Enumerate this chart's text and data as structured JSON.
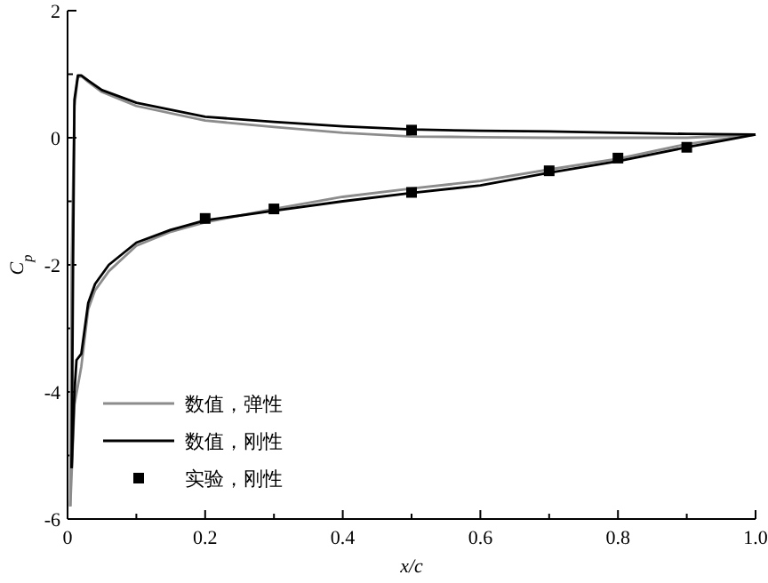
{
  "chart_data": {
    "type": "line",
    "xlabel": "x/c",
    "ylabel": "C$_{p}$",
    "xlim": [
      0,
      1
    ],
    "ylim": [
      -6,
      2
    ],
    "xticks": [
      0,
      {
        "value": 0.1,
        "label": null
      },
      0.2,
      {
        "value": 0.3,
        "label": null
      },
      0.4,
      {
        "value": 0.5,
        "label": null
      },
      0.6,
      {
        "value": 0.7,
        "label": null
      },
      0.8,
      {
        "value": 0.9,
        "label": null
      },
      {
        "value": 1,
        "label": "1.0"
      }
    ],
    "yticks": [
      -6,
      {
        "value": -5,
        "label": null
      },
      -4,
      {
        "value": -3,
        "label": null
      },
      -2,
      {
        "value": -1,
        "label": null
      },
      0,
      {
        "value": 1,
        "label": null
      },
      2
    ],
    "grid": false,
    "legend": "bottom left",
    "marker": "none",
    "line_style": "solid",
    "series": [
      {
        "name": "数值，弹性",
        "color": "#8c8c8c",
        "x": [
          0.004,
          0.01,
          0.02,
          0.03,
          0.04,
          0.06,
          0.1,
          0.15,
          0.2,
          0.3,
          0.4,
          0.5,
          0.6,
          0.7,
          0.8,
          0.9,
          1.0
        ],
        "values": [
          -5.8,
          -4.2,
          -3.6,
          -2.7,
          -2.4,
          -2.1,
          -1.7,
          -1.48,
          -1.33,
          -1.12,
          -0.93,
          -0.8,
          -0.68,
          -0.5,
          -0.33,
          -0.1,
          0.05
        ]
      },
      {
        "color": "#8c8c8c",
        "x": [
          0.004,
          0.006,
          0.01,
          0.015,
          0.02,
          0.03,
          0.05,
          0.1,
          0.2,
          0.3,
          0.4,
          0.5,
          0.6,
          0.7,
          0.8,
          0.9,
          1.0
        ],
        "values": [
          -5.8,
          -2,
          0.5,
          0.95,
          0.97,
          0.88,
          0.72,
          0.5,
          0.27,
          0.17,
          0.08,
          0.02,
          0.01,
          0.0,
          0.0,
          0.0,
          0.05
        ]
      },
      {
        "name": "数值，刚性",
        "color": "#000000",
        "x": [
          0.006,
          0.01,
          0.013,
          0.02,
          0.03,
          0.04,
          0.06,
          0.1,
          0.15,
          0.2,
          0.3,
          0.4,
          0.5,
          0.6,
          0.7,
          0.8,
          0.9,
          0.95,
          1.0
        ],
        "values": [
          -5.2,
          -4.0,
          -3.5,
          -3.4,
          -2.6,
          -2.3,
          -2.0,
          -1.65,
          -1.45,
          -1.3,
          -1.15,
          -1.0,
          -0.87,
          -0.75,
          -0.55,
          -0.37,
          -0.15,
          -0.05,
          0.05
        ]
      },
      {
        "color": "#000000",
        "x": [
          0.006,
          0.008,
          0.01,
          0.015,
          0.02,
          0.03,
          0.05,
          0.1,
          0.2,
          0.3,
          0.4,
          0.5,
          0.6,
          0.7,
          0.8,
          0.9,
          1.0
        ],
        "values": [
          -5.2,
          -2,
          0.6,
          0.98,
          0.98,
          0.9,
          0.75,
          0.55,
          0.33,
          0.25,
          0.18,
          0.13,
          0.11,
          0.1,
          0.08,
          0.06,
          0.05
        ]
      },
      {
        "name": "实验，刚性",
        "color": "#000000",
        "type": "scatter",
        "marker": "square",
        "x": [
          0.2,
          0.3,
          0.5,
          0.5,
          0.7,
          0.8,
          0.9
        ],
        "values": [
          -1.27,
          -1.12,
          0.12,
          -0.86,
          -0.52,
          -0.32,
          -0.15
        ]
      }
    ]
  }
}
